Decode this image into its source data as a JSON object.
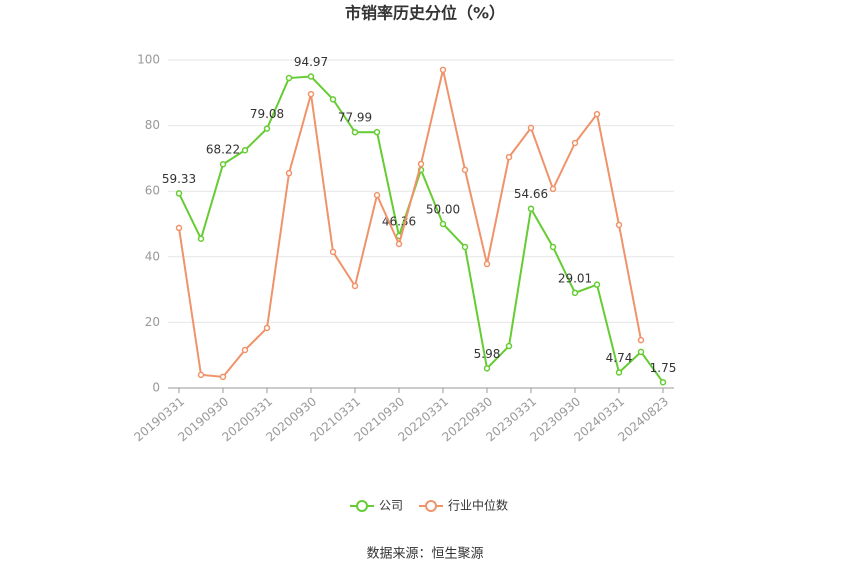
{
  "chart_data": {
    "type": "line",
    "title": "市销率历史分位（%）",
    "source": "数据来源：恒生聚源",
    "categories": [
      "20190331",
      null,
      "20190930",
      null,
      "20200331",
      null,
      "20200930",
      null,
      "20210331",
      null,
      "20210930",
      null,
      "20220331",
      null,
      "20220930",
      null,
      "20230331",
      null,
      "20230930",
      null,
      "20240331",
      null,
      "20240823"
    ],
    "series": [
      {
        "name": "公司",
        "color": "#66cc33",
        "values": [
          59.33,
          45.5,
          68.22,
          72.5,
          79.08,
          94.5,
          94.97,
          88,
          77.99,
          78,
          46.36,
          66.5,
          50.0,
          43,
          5.98,
          12.8,
          54.66,
          43,
          29.01,
          31.5,
          4.74,
          11,
          1.75
        ],
        "value_labels": [
          "59.33",
          null,
          "68.22",
          null,
          "79.08",
          null,
          "94.97",
          null,
          "77.99",
          null,
          "46.36",
          null,
          "50.00",
          null,
          "5.98",
          null,
          "54.66",
          null,
          "29.01",
          null,
          "4.74",
          null,
          "1.75"
        ]
      },
      {
        "name": "行业中位数",
        "color": "#f0936a",
        "values": [
          48.8,
          4,
          3.4,
          11.6,
          18.3,
          65.5,
          89.6,
          41.5,
          31.1,
          58.8,
          43.9,
          68.3,
          97,
          66.5,
          37.8,
          70.4,
          79.3,
          60.7,
          74.7,
          83.5,
          49.7,
          14.6,
          null
        ]
      }
    ],
    "ylim": [
      0,
      100
    ],
    "yticks": [
      0,
      20,
      40,
      60,
      80,
      100
    ],
    "grid": true,
    "legend": "bottom"
  }
}
